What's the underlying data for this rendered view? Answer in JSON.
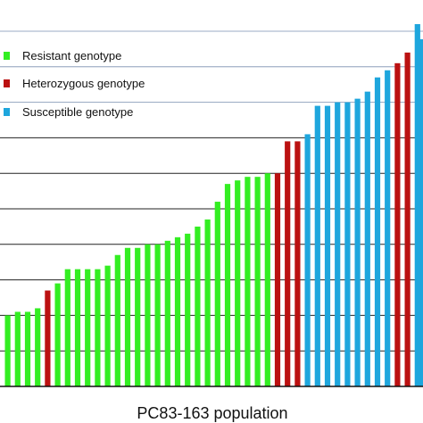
{
  "chart_data": {
    "type": "bar",
    "xlabel": "PC83-163 population",
    "ylim": [
      0,
      11
    ],
    "grid": true,
    "legend_position": "top-left",
    "legend": [
      {
        "label": "Resistant genotype",
        "color": "#33ee22"
      },
      {
        "label": "Heterozygous genotype",
        "color": "#bb1111"
      },
      {
        "label": "Susceptible genotype",
        "color": "#1ea6dd"
      }
    ],
    "groups": [
      "Resistant genotype",
      "Heterozygous genotype",
      "Susceptible genotype"
    ],
    "values": [
      2.0,
      2.1,
      2.1,
      2.2,
      2.7,
      2.9,
      3.3,
      3.3,
      3.3,
      3.3,
      3.4,
      3.7,
      3.9,
      3.9,
      4.0,
      4.0,
      4.1,
      4.2,
      4.3,
      4.5,
      4.7,
      5.2,
      5.7,
      5.8,
      5.9,
      5.9,
      6.0,
      6.0,
      6.9,
      6.9,
      7.1,
      7.9,
      7.9,
      8.0,
      8.0,
      8.1,
      8.3,
      8.7,
      8.9,
      9.1,
      9.4,
      10.2
    ],
    "genotype_index": [
      0,
      0,
      0,
      0,
      1,
      0,
      0,
      0,
      0,
      0,
      0,
      0,
      0,
      0,
      0,
      0,
      0,
      0,
      0,
      0,
      0,
      0,
      0,
      0,
      0,
      0,
      0,
      1,
      1,
      1,
      2,
      2,
      2,
      2,
      2,
      2,
      2,
      2,
      2,
      1,
      1,
      2
    ],
    "clipped_bar_group": 2
  }
}
